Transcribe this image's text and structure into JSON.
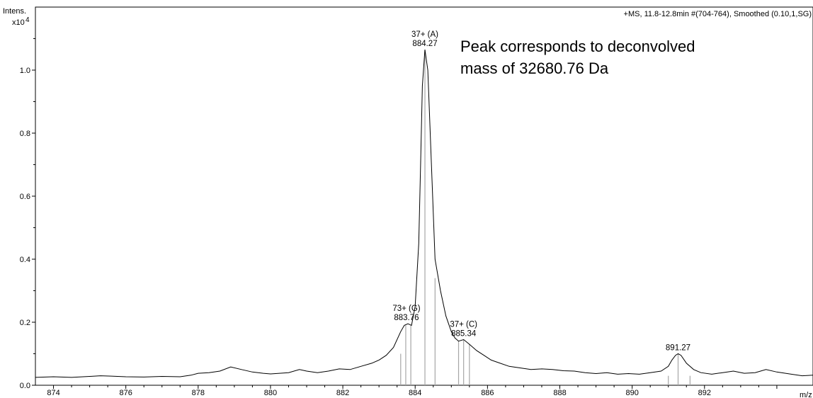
{
  "chart_data": {
    "type": "line",
    "y_axis": {
      "title_line1": "Intens.",
      "title_line2": "x10",
      "exponent": "4",
      "ylim": [
        0,
        1.2
      ]
    },
    "x_axis": {
      "label": "m/z",
      "xlim": [
        873.5,
        895.0
      ]
    },
    "x_ticks": [
      874,
      876,
      878,
      880,
      882,
      884,
      886,
      888,
      890,
      892
    ],
    "x_tick_labels": [
      "874",
      "876",
      "878",
      "880",
      "882",
      "884",
      "886",
      "888",
      "890",
      "892"
    ],
    "y_ticks": [
      0.0,
      0.2,
      0.4,
      0.6,
      0.8,
      1.0
    ],
    "y_tick_labels": [
      "0.0",
      "0.2",
      "0.4",
      "0.6",
      "0.8",
      "1.0"
    ],
    "header_text": "+MS, 11.8-12.8min #(704-764), Smoothed (0.10,1,SG)",
    "annotation_lines": [
      "Peak corresponds to deconvolved",
      "mass of 32680.76 Da"
    ],
    "peak_labels": [
      {
        "charge": "37+ (A)",
        "mz": "884.27",
        "x": 884.27,
        "y": 1.065
      },
      {
        "charge": "73+ (G)",
        "mz": "883.76",
        "x": 883.76,
        "y": 0.195
      },
      {
        "charge": "37+ (C)",
        "mz": "885.34",
        "x": 885.34,
        "y": 0.145
      },
      {
        "charge": "",
        "mz": "891.27",
        "x": 891.27,
        "y": 0.1
      }
    ],
    "stick_marks": [
      {
        "x": 883.6,
        "y": 0.1
      },
      {
        "x": 883.74,
        "y": 0.19
      },
      {
        "x": 883.88,
        "y": 0.19
      },
      {
        "x": 884.27,
        "y": 1.065
      },
      {
        "x": 884.55,
        "y": 0.34
      },
      {
        "x": 885.2,
        "y": 0.14
      },
      {
        "x": 885.34,
        "y": 0.145
      },
      {
        "x": 885.5,
        "y": 0.13
      },
      {
        "x": 891.0,
        "y": 0.03
      },
      {
        "x": 891.27,
        "y": 0.1
      },
      {
        "x": 891.6,
        "y": 0.03
      }
    ],
    "series": [
      {
        "x": [
          873.5,
          874.0,
          874.5,
          875.0,
          875.3,
          875.6,
          876.0,
          876.5,
          877.0,
          877.5,
          877.8,
          878.0,
          878.3,
          878.6,
          878.9,
          879.2,
          879.5,
          879.8,
          880.0,
          880.5,
          880.8,
          881.0,
          881.3,
          881.6,
          881.9,
          882.2,
          882.5,
          882.8,
          883.0,
          883.2,
          883.4,
          883.6,
          883.7,
          883.8,
          883.9,
          884.0,
          884.1,
          884.15,
          884.2,
          884.27,
          884.35,
          884.45,
          884.55,
          884.7,
          884.85,
          885.0,
          885.1,
          885.2,
          885.34,
          885.5,
          885.7,
          885.9,
          886.1,
          886.3,
          886.6,
          886.9,
          887.2,
          887.5,
          887.8,
          888.1,
          888.4,
          888.7,
          889.0,
          889.3,
          889.6,
          889.9,
          890.2,
          890.5,
          890.8,
          891.0,
          891.1,
          891.2,
          891.27,
          891.35,
          891.5,
          891.7,
          891.9,
          892.2,
          892.5,
          892.8,
          893.1,
          893.4,
          893.7,
          894.0,
          894.4,
          894.7,
          895.0
        ],
        "y": [
          0.025,
          0.027,
          0.025,
          0.028,
          0.03,
          0.029,
          0.027,
          0.026,
          0.028,
          0.027,
          0.032,
          0.038,
          0.04,
          0.045,
          0.058,
          0.05,
          0.042,
          0.038,
          0.036,
          0.04,
          0.05,
          0.045,
          0.04,
          0.045,
          0.052,
          0.05,
          0.06,
          0.07,
          0.08,
          0.095,
          0.12,
          0.17,
          0.19,
          0.195,
          0.19,
          0.25,
          0.45,
          0.7,
          0.95,
          1.065,
          1.0,
          0.7,
          0.4,
          0.3,
          0.22,
          0.17,
          0.15,
          0.14,
          0.145,
          0.13,
          0.11,
          0.095,
          0.08,
          0.072,
          0.06,
          0.055,
          0.05,
          0.052,
          0.05,
          0.046,
          0.045,
          0.04,
          0.037,
          0.04,
          0.035,
          0.037,
          0.035,
          0.04,
          0.045,
          0.06,
          0.08,
          0.095,
          0.1,
          0.095,
          0.07,
          0.05,
          0.04,
          0.035,
          0.04,
          0.045,
          0.038,
          0.04,
          0.05,
          0.042,
          0.035,
          0.03,
          0.032
        ]
      }
    ]
  }
}
